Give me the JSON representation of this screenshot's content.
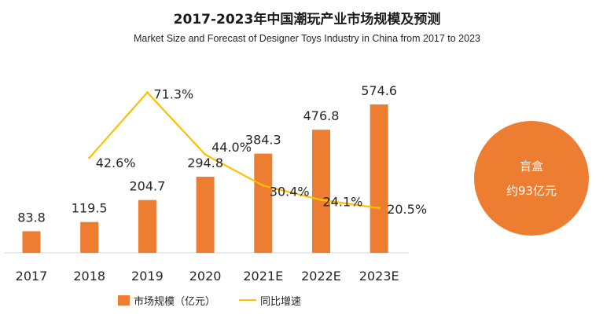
{
  "title": "2017-2023年中国潮玩产业市场规模及预测",
  "subtitle": "Market Size and Forecast of Designer Toys Industry in China from 2017 to 2023",
  "chart_data": {
    "type": "bar",
    "categories": [
      "2017",
      "2018",
      "2019",
      "2020",
      "2021E",
      "2022E",
      "2023E"
    ],
    "series": [
      {
        "name": "市场规模（亿元）",
        "type": "bar",
        "color": "#ed7d31",
        "values": [
          83.8,
          119.5,
          204.7,
          294.8,
          384.3,
          476.8,
          574.6
        ],
        "labels": [
          "83.8",
          "119.5",
          "204.7",
          "294.8",
          "384.3",
          "476.8",
          "574.6"
        ]
      },
      {
        "name": "同比增速",
        "type": "line",
        "color": "#ffc000",
        "values": [
          null,
          42.6,
          71.3,
          44.0,
          30.4,
          24.1,
          20.5
        ],
        "labels": [
          "",
          "42.6%",
          "71.3%",
          "44.0%",
          "30.4%",
          "24.1%",
          "20.5%"
        ]
      }
    ],
    "legend": "bottom",
    "grid": false
  },
  "callout": {
    "line1": "盲盒",
    "line2": "约93亿元",
    "color": "#ed7d31"
  }
}
